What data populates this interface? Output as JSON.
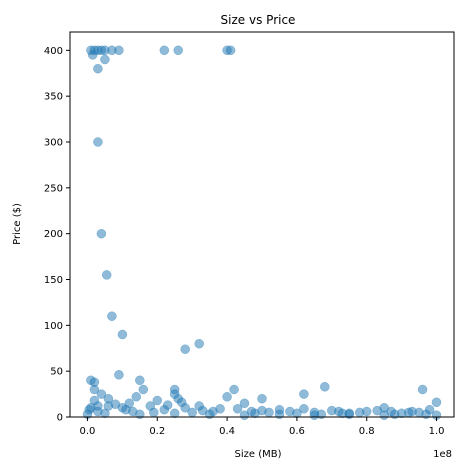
{
  "chart_data": {
    "type": "scatter",
    "title": "Size vs Price",
    "xlabel": "Size (MB)",
    "ylabel": "Price ($)",
    "x_offset_label": "1e8",
    "xlim": [
      -0.05,
      1.05
    ],
    "ylim": [
      0,
      420
    ],
    "x_ticks": [
      0.0,
      0.2,
      0.4,
      0.6,
      0.8,
      1.0
    ],
    "x_tick_labels": [
      "0.0",
      "0.2",
      "0.4",
      "0.6",
      "0.8",
      "1.0"
    ],
    "y_ticks": [
      0,
      50,
      100,
      150,
      200,
      250,
      300,
      350,
      400
    ],
    "y_tick_labels": [
      "0",
      "50",
      "100",
      "150",
      "200",
      "250",
      "300",
      "350",
      "400"
    ],
    "grid": false,
    "legend": "none",
    "marker_color": "#1f77b4",
    "marker_alpha": 0.5,
    "points": [
      [
        0.01,
        400
      ],
      [
        0.02,
        400
      ],
      [
        0.03,
        400
      ],
      [
        0.04,
        400
      ],
      [
        0.05,
        400
      ],
      [
        0.07,
        400
      ],
      [
        0.09,
        400
      ],
      [
        0.22,
        400
      ],
      [
        0.26,
        400
      ],
      [
        0.4,
        400
      ],
      [
        0.41,
        400
      ],
      [
        0.015,
        395
      ],
      [
        0.05,
        390
      ],
      [
        0.03,
        380
      ],
      [
        0.03,
        300
      ],
      [
        0.04,
        200
      ],
      [
        0.055,
        155
      ],
      [
        0.07,
        110
      ],
      [
        0.1,
        90
      ],
      [
        0.32,
        80
      ],
      [
        0.28,
        74
      ],
      [
        0.09,
        46
      ],
      [
        0.01,
        40
      ],
      [
        0.02,
        38
      ],
      [
        0.15,
        40
      ],
      [
        0.42,
        30
      ],
      [
        0.25,
        30
      ],
      [
        0.68,
        33
      ],
      [
        0.96,
        30
      ],
      [
        0.62,
        25
      ],
      [
        0.5,
        20
      ],
      [
        1.0,
        16
      ],
      [
        0.25,
        25
      ],
      [
        0.06,
        20
      ],
      [
        0.02,
        30
      ],
      [
        0.14,
        22
      ],
      [
        0.16,
        30
      ],
      [
        0.32,
        12
      ],
      [
        0.2,
        18
      ],
      [
        0.45,
        15
      ],
      [
        0.55,
        8
      ],
      [
        0.72,
        6
      ],
      [
        0.85,
        10
      ],
      [
        0.92,
        5
      ],
      [
        0.4,
        22
      ],
      [
        0.36,
        6
      ],
      [
        0.18,
        12
      ],
      [
        0.12,
        15
      ],
      [
        0.1,
        10
      ],
      [
        0.08,
        14
      ],
      [
        0.03,
        12
      ],
      [
        0.01,
        10
      ],
      [
        0.005,
        8
      ],
      [
        0.03,
        6
      ],
      [
        0.26,
        20
      ],
      [
        0.3,
        5
      ],
      [
        0.47,
        6
      ],
      [
        0.6,
        4
      ],
      [
        0.65,
        5
      ],
      [
        0.75,
        4
      ],
      [
        0.8,
        6
      ],
      [
        0.88,
        3
      ],
      [
        0.95,
        5
      ],
      [
        0.98,
        8
      ],
      [
        0.0,
        3
      ],
      [
        0.05,
        4
      ],
      [
        0.15,
        3
      ],
      [
        0.25,
        4
      ],
      [
        0.35,
        3
      ],
      [
        0.45,
        2
      ],
      [
        0.55,
        3
      ],
      [
        0.65,
        2
      ],
      [
        0.75,
        3
      ],
      [
        0.85,
        2
      ],
      [
        0.9,
        4
      ],
      [
        1.0,
        2
      ],
      [
        0.22,
        8
      ],
      [
        0.28,
        10
      ],
      [
        0.33,
        7
      ],
      [
        0.38,
        9
      ],
      [
        0.5,
        7
      ],
      [
        0.58,
        6
      ],
      [
        0.7,
        7
      ],
      [
        0.78,
        5
      ],
      [
        0.83,
        7
      ],
      [
        0.93,
        6
      ],
      [
        0.97,
        3
      ],
      [
        0.02,
        18
      ],
      [
        0.04,
        25
      ],
      [
        0.06,
        12
      ],
      [
        0.11,
        8
      ],
      [
        0.13,
        6
      ],
      [
        0.19,
        5
      ],
      [
        0.23,
        13
      ],
      [
        0.27,
        16
      ],
      [
        0.43,
        9
      ],
      [
        0.48,
        4
      ],
      [
        0.52,
        5
      ],
      [
        0.62,
        9
      ],
      [
        0.67,
        3
      ],
      [
        0.73,
        4
      ],
      [
        0.87,
        6
      ]
    ]
  }
}
